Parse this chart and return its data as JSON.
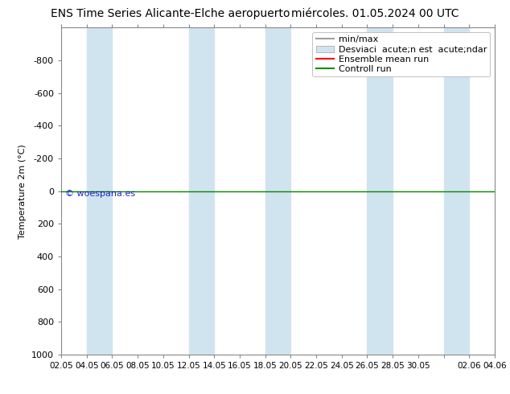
{
  "title_left": "ENS Time Series Alicante-Elche aeropuerto",
  "title_right": "miércoles. 01.05.2024 00 UTC",
  "title_right_display": "mi  acute;.  01.05.2024 00 UTC",
  "ylabel": "Temperature 2m (°C)",
  "watermark": "© woespana.es",
  "ylim_bottom": 1000,
  "ylim_top": -1000,
  "yticks": [
    -800,
    -600,
    -400,
    -200,
    0,
    200,
    400,
    600,
    800,
    1000
  ],
  "xtick_positions": [
    0,
    2,
    4,
    6,
    8,
    10,
    12,
    14,
    16,
    18,
    20,
    22,
    24,
    26,
    28,
    30,
    32,
    34
  ],
  "xtick_labels": [
    "02.05",
    "04.05",
    "06.05",
    "08.05",
    "10.05",
    "12.05",
    "14.05",
    "16.05",
    "18.05",
    "20.05",
    "22.05",
    "24.05",
    "26.05",
    "28.05",
    "30.05",
    "",
    "02.06",
    "04.06"
  ],
  "band_pairs": [
    [
      2,
      4
    ],
    [
      10,
      12
    ],
    [
      16,
      18
    ],
    [
      24,
      26
    ],
    [
      30,
      32
    ]
  ],
  "zero_line_y": 0,
  "ensemble_mean_color": "#ff0000",
  "control_run_color": "#009000",
  "minmax_color": "#a0a0a0",
  "std_band_color": "#d0e4f0",
  "background_color": "#ffffff",
  "plot_bg_color": "#ffffff",
  "title_fontsize": 10,
  "axis_fontsize": 8,
  "legend_fontsize": 8,
  "legend_label_minmax": "min/max",
  "legend_label_std": "Desviaci  acute;n est  acute;ndar",
  "legend_label_ensemble": "Ensemble mean run",
  "legend_label_control": "Controll run",
  "xlim": [
    0,
    34
  ],
  "x_total": 34,
  "watermark_color": "#0000cc",
  "watermark_x_pos": 0.5,
  "watermark_y_pos": 30
}
